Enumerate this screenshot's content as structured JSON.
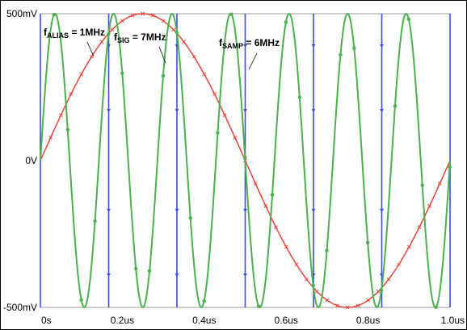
{
  "chart_data": {
    "type": "line",
    "title": "",
    "xlabel": "",
    "ylabel": "",
    "xlim": [
      0,
      1.0
    ],
    "ylim": [
      -0.5,
      0.5
    ],
    "x_unit": "us",
    "y_unit": "V",
    "xticks": [
      "0s",
      "0.2us",
      "0.4us",
      "0.6us",
      "0.8us",
      "1.0us"
    ],
    "xtick_values": [
      0,
      0.2,
      0.4,
      0.6,
      0.8,
      1.0
    ],
    "yticks": [
      "500mV",
      "0V",
      "-500mV"
    ],
    "ytick_values": [
      0.5,
      0,
      -0.5
    ],
    "grid": false,
    "series": [
      {
        "name": "",
        "kind": "sine",
        "frequency_MHz": 1,
        "amplitude_V": 0.5,
        "phase_rad": 0,
        "color": "#e8453c",
        "marker": "x"
      },
      {
        "name": "",
        "kind": "sine",
        "frequency_MHz": 7,
        "amplitude_V": 0.5,
        "phase_rad": 0,
        "color": "#4caf50",
        "marker": "o"
      },
      {
        "name": "",
        "kind": "sample_clock",
        "frequency_MHz": 6,
        "sample_times_us": [
          0,
          0.1667,
          0.3333,
          0.5,
          0.6667,
          0.8333,
          1.0
        ],
        "color": "#3a4fd8",
        "marker": "v"
      }
    ],
    "annotations": [
      {
        "main": "f",
        "sub": "ALIAS",
        "rest": " = 1MHz",
        "target_series": 0
      },
      {
        "main": "f",
        "sub": "SIG",
        "rest": " = 7MHz",
        "target_series": 1
      },
      {
        "main": "f",
        "sub": "SAMP",
        "rest": " = 6MHz",
        "target_series": 2
      }
    ]
  }
}
